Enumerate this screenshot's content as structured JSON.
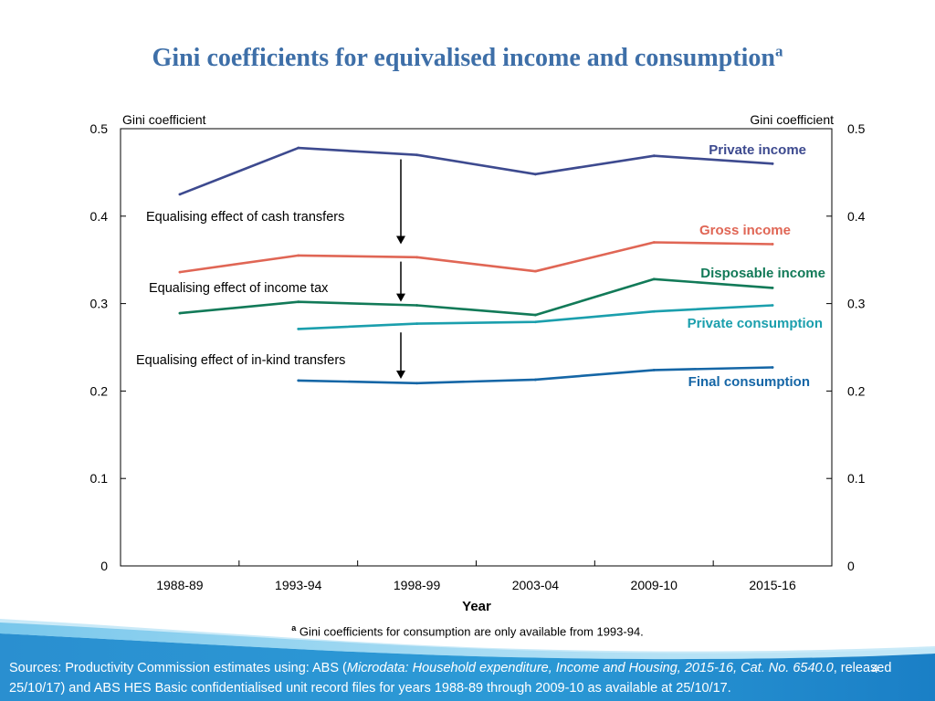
{
  "title": {
    "main": "Gini coefficients for equivalised income and consumption",
    "superscript": "a"
  },
  "chart_data": {
    "type": "line",
    "categories": [
      "1988-89",
      "1993-94",
      "1998-99",
      "2003-04",
      "2009-10",
      "2015-16"
    ],
    "xlabel": "Year",
    "ylabel_left": "Gini coefficient",
    "ylabel_right": "Gini coefficient",
    "ylim": [
      0,
      0.5
    ],
    "yticks": [
      "0",
      "0.1",
      "0.2",
      "0.3",
      "0.4",
      "0.5"
    ],
    "grid": false,
    "series": [
      {
        "name": "Private income",
        "color": "#3d4a8f",
        "values": [
          0.425,
          0.478,
          0.47,
          0.448,
          0.469,
          0.46
        ]
      },
      {
        "name": "Gross income",
        "color": "#e06655",
        "values": [
          0.336,
          0.355,
          0.353,
          0.337,
          0.37,
          0.368
        ]
      },
      {
        "name": "Disposable income",
        "color": "#127a58",
        "values": [
          0.289,
          0.302,
          0.298,
          0.287,
          0.328,
          0.318
        ]
      },
      {
        "name": "Private consumption",
        "color": "#1b9fad",
        "values": [
          null,
          0.271,
          0.277,
          0.279,
          0.291,
          0.298
        ]
      },
      {
        "name": "Final consumption",
        "color": "#1566a6",
        "values": [
          null,
          0.212,
          0.209,
          0.213,
          0.224,
          0.227
        ]
      }
    ],
    "annotations": [
      {
        "text": "Equalising effect of cash transfers",
        "category": "1998-99",
        "from": 0.465,
        "to": 0.368
      },
      {
        "text": "Equalising effect of income tax",
        "category": "1998-99",
        "from": 0.348,
        "to": 0.302
      },
      {
        "text": "Equalising effect of in-kind transfers",
        "category": "1998-99",
        "from": 0.267,
        "to": 0.214
      }
    ]
  },
  "footnote": {
    "marker": "a",
    "text": " Gini coefficients for consumption are only available from 1993-94."
  },
  "sources": {
    "prefix": "Sources: Productivity Commission estimates using: ABS (",
    "italic": "Microdata: Household expenditure, Income and Housing, 2015-16, Cat. No. 6540.0",
    "suffix": ", released 25/10/17) and ABS HES Basic confidentialised unit record files for years 1988-89 through 2009-10 as available at 25/10/17."
  },
  "page_number": "4",
  "colors": {
    "title": "#3e6fa8",
    "footer_band": "#1f8fd0"
  }
}
